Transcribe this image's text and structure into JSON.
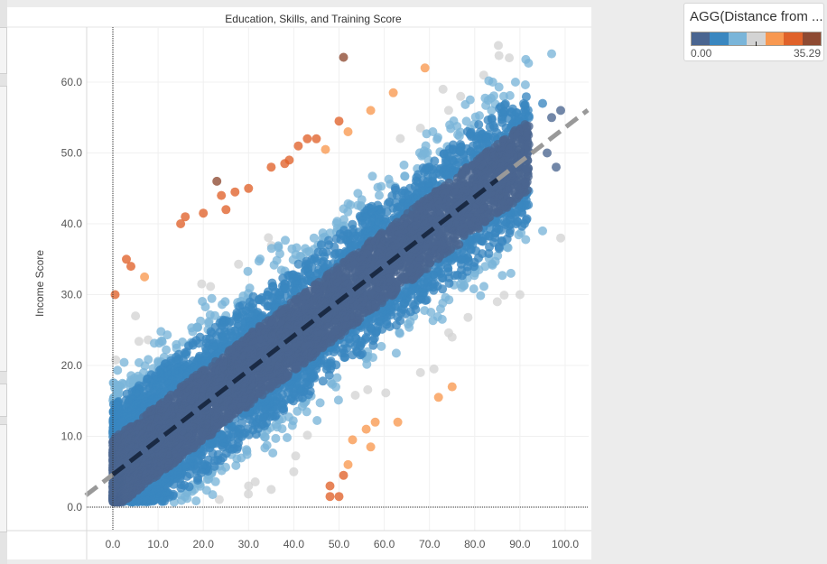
{
  "chart_data": {
    "type": "scatter",
    "title": "Education, Skills, and Training Score",
    "xlabel": "Education, Skills, and Training Score",
    "ylabel": "Income Score",
    "xlim": [
      -6,
      105
    ],
    "ylim": [
      -3.5,
      67
    ],
    "x_ticks": [
      "0.0",
      "10.0",
      "20.0",
      "30.0",
      "40.0",
      "50.0",
      "60.0",
      "70.0",
      "80.0",
      "90.0",
      "100.0"
    ],
    "x_tick_values": [
      0,
      10,
      20,
      30,
      40,
      50,
      60,
      70,
      80,
      90,
      100
    ],
    "y_ticks": [
      "0.0",
      "10.0",
      "20.0",
      "30.0",
      "40.0",
      "50.0",
      "60.0"
    ],
    "y_tick_values": [
      0,
      10,
      20,
      30,
      40,
      50,
      60
    ],
    "grid": true,
    "trend_line": {
      "slope": 0.49,
      "intercept": 4.6,
      "style": "dashed"
    },
    "color_field": "AGG(Distance from ...",
    "color_range": [
      0.0,
      35.29
    ],
    "color_bins": [
      "#4a6590",
      "#3a87c0",
      "#7ab5d9",
      "#d3d3d3",
      "#f89850",
      "#e0622a",
      "#8e4a32"
    ],
    "cloud": {
      "count": 7000,
      "residual_sd": 5.2,
      "seed": 7
    },
    "outliers": [
      [
        51,
        63.5
      ],
      [
        69,
        62
      ],
      [
        50,
        54.5
      ],
      [
        23,
        46
      ],
      [
        24,
        44
      ],
      [
        27,
        44.5
      ],
      [
        45,
        52
      ],
      [
        43,
        52
      ],
      [
        41,
        51
      ],
      [
        39,
        49
      ],
      [
        38,
        48.5
      ],
      [
        3,
        35
      ],
      [
        4,
        34
      ],
      [
        7,
        32.5
      ],
      [
        5,
        27
      ],
      [
        0.5,
        30
      ],
      [
        15,
        40
      ],
      [
        16,
        41
      ],
      [
        20,
        41.5
      ],
      [
        25,
        42
      ],
      [
        30,
        45
      ],
      [
        35,
        48
      ],
      [
        47,
        50.5
      ],
      [
        52,
        53
      ],
      [
        57,
        56
      ],
      [
        62,
        58.5
      ],
      [
        68,
        53.5
      ],
      [
        73,
        59
      ],
      [
        79,
        57.5
      ],
      [
        82,
        61
      ],
      [
        84,
        60
      ],
      [
        89,
        60
      ],
      [
        97,
        64
      ],
      [
        99,
        56
      ],
      [
        97,
        55
      ],
      [
        95,
        57
      ],
      [
        92,
        55
      ],
      [
        96,
        50
      ],
      [
        98,
        48
      ],
      [
        90,
        45
      ],
      [
        86,
        42
      ],
      [
        91,
        40
      ],
      [
        95,
        39
      ],
      [
        99,
        38
      ],
      [
        48,
        1.5
      ],
      [
        50,
        1.5
      ],
      [
        51,
        4.5
      ],
      [
        52,
        6
      ],
      [
        53,
        9.5
      ],
      [
        48,
        3
      ],
      [
        56,
        11
      ],
      [
        57,
        8.5
      ],
      [
        58,
        12
      ],
      [
        63,
        12
      ],
      [
        68,
        19
      ],
      [
        72,
        15.5
      ],
      [
        75,
        17
      ],
      [
        71,
        19.5
      ],
      [
        75,
        24
      ],
      [
        85,
        29
      ],
      [
        90,
        30
      ],
      [
        88,
        33
      ],
      [
        30,
        3
      ],
      [
        40,
        5
      ],
      [
        35,
        2.5
      ]
    ]
  },
  "legend": {
    "title": "AGG(Distance from ...",
    "min": "0.00",
    "max": "35.29"
  }
}
